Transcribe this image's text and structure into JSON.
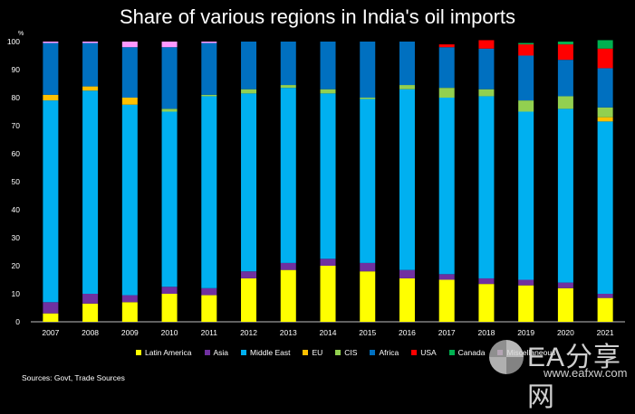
{
  "chart_data": {
    "type": "bar",
    "stacked": true,
    "title": "Share of various regions in India's oil imports",
    "ylabel": "%",
    "ylim": [
      0,
      100
    ],
    "yticks": [
      0,
      10,
      20,
      30,
      40,
      50,
      60,
      70,
      80,
      90,
      100
    ],
    "grid": false,
    "legend_position": "bottom",
    "categories": [
      "2007",
      "2008",
      "2009",
      "2010",
      "2011",
      "2012",
      "2013",
      "2014",
      "2015",
      "2016",
      "2017",
      "2018",
      "2019",
      "2020",
      "2021"
    ],
    "series": [
      {
        "name": "Latin America",
        "color": "#ffff00",
        "values": [
          3,
          6.5,
          7,
          10,
          9.5,
          15.5,
          18.5,
          20,
          18,
          15.5,
          15,
          13.5,
          13,
          12,
          8.5
        ]
      },
      {
        "name": "Asia",
        "color": "#7030a0",
        "values": [
          4,
          3.5,
          2.5,
          2.5,
          2.5,
          2.5,
          2.5,
          2.5,
          3,
          3,
          2,
          2,
          2,
          2,
          1.5
        ]
      },
      {
        "name": "Middle East",
        "color": "#00b0f0",
        "values": [
          72,
          72.5,
          68,
          62.5,
          68.5,
          63.5,
          62.5,
          59,
          58.5,
          64.5,
          63,
          65,
          60,
          62,
          61.5
        ]
      },
      {
        "name": "EU",
        "color": "#ffc000",
        "values": [
          2,
          1.5,
          2.5,
          0,
          0,
          0,
          0,
          0,
          0,
          0,
          0,
          0,
          0,
          0,
          1.5
        ]
      },
      {
        "name": "CIS",
        "color": "#92d050",
        "values": [
          0,
          0,
          0,
          1,
          0.5,
          1.5,
          1,
          1.5,
          0.5,
          1.5,
          3.5,
          2.5,
          4,
          4.5,
          3.5
        ]
      },
      {
        "name": "Africa",
        "color": "#0070c0",
        "values": [
          18.5,
          15.5,
          18,
          22,
          18.5,
          17,
          15.5,
          17,
          20,
          15.5,
          14.5,
          14.5,
          16,
          13,
          14
        ]
      },
      {
        "name": "USA",
        "color": "#ff0000",
        "values": [
          0,
          0,
          0,
          0,
          0,
          0,
          0,
          0,
          0,
          0,
          1,
          3,
          4,
          5.5,
          7
        ]
      },
      {
        "name": "Canada",
        "color": "#00b050",
        "values": [
          0,
          0,
          0,
          0,
          0,
          0,
          0,
          0,
          0,
          0,
          0,
          0,
          0.5,
          1,
          3
        ]
      },
      {
        "name": "Miscellaneous",
        "color": "#ff99ff",
        "values": [
          0.5,
          0.5,
          2,
          2,
          0.5,
          0,
          0,
          0,
          0,
          0,
          0,
          0,
          0,
          0,
          0
        ]
      }
    ]
  },
  "source_text": "Sources: Govt, Trade Sources",
  "watermark": {
    "text": "EA分享网",
    "url": "www.eafxw.com"
  }
}
